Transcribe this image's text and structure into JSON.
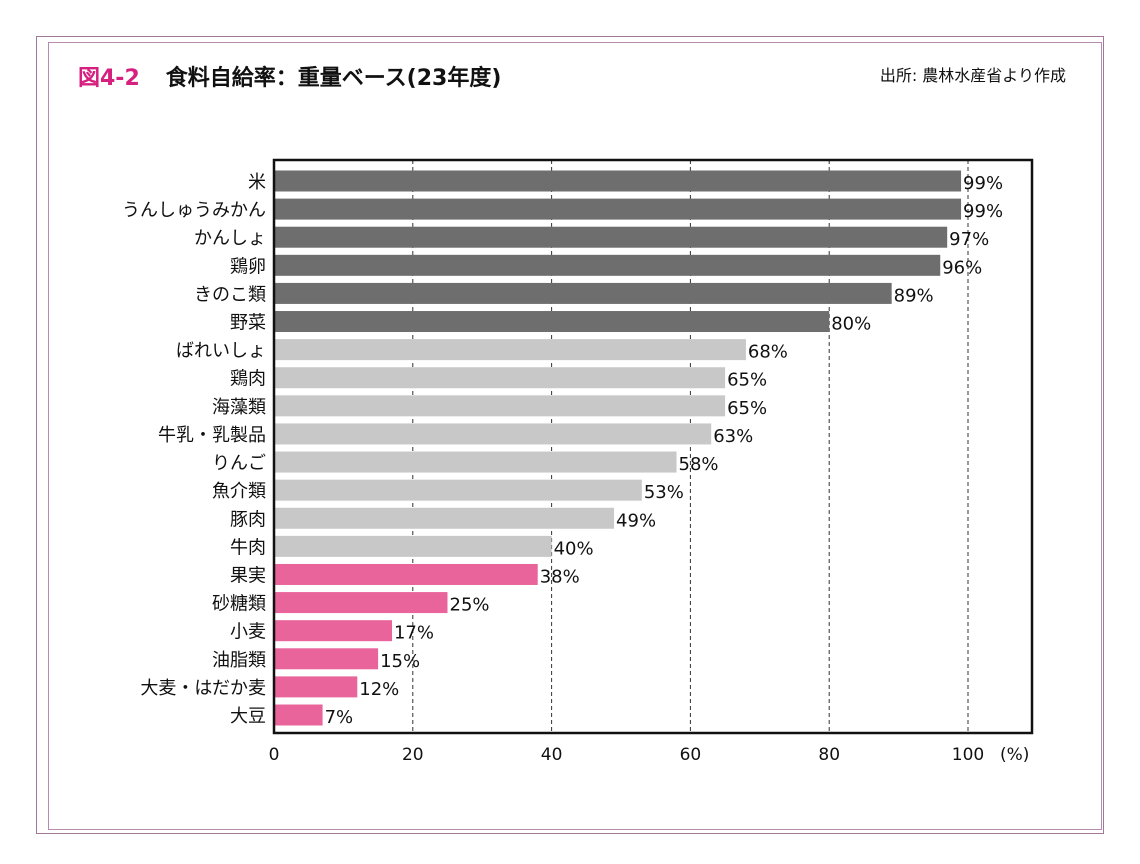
{
  "header": {
    "figure_number": "図4-2",
    "title": "食料自給率：重量ベース(23年度)",
    "source": "出所: 農林水産省より作成"
  },
  "chart_data": {
    "type": "bar",
    "orientation": "horizontal",
    "title": "食料自給率：重量ベース(23年度)",
    "categories": [
      "米",
      "うんしゅうみかん",
      "かんしょ",
      "鶏卵",
      "きのこ類",
      "野菜",
      "ばれいしょ",
      "鶏肉",
      "海藻類",
      "牛乳・乳製品",
      "りんご",
      "魚介類",
      "豚肉",
      "牛肉",
      "果実",
      "砂糖類",
      "小麦",
      "油脂類",
      "大麦・はだか麦",
      "大豆"
    ],
    "values": [
      99,
      99,
      97,
      96,
      89,
      80,
      68,
      65,
      65,
      63,
      58,
      53,
      49,
      40,
      38,
      25,
      17,
      15,
      12,
      7
    ],
    "data_labels": [
      "99%",
      "99%",
      "97%",
      "96%",
      "89%",
      "80%",
      "68%",
      "65%",
      "65%",
      "63%",
      "58%",
      "53%",
      "49%",
      "40%",
      "38%",
      "25%",
      "17%",
      "15%",
      "12%",
      "7%"
    ],
    "bar_color_groups": [
      "dark",
      "dark",
      "dark",
      "dark",
      "dark",
      "dark",
      "light",
      "light",
      "light",
      "light",
      "light",
      "light",
      "light",
      "light",
      "pink",
      "pink",
      "pink",
      "pink",
      "pink",
      "pink"
    ],
    "colors": {
      "dark": "#6e6e6e",
      "light": "#c8c8c8",
      "pink": "#e8649a",
      "title_accent": "#d6207f",
      "frame": "#a0789a"
    },
    "xlim": [
      0,
      109
    ],
    "xticks": [
      0,
      20,
      40,
      60,
      80,
      100
    ],
    "xtick_labels": [
      "0",
      "20",
      "40",
      "60",
      "80",
      "100"
    ],
    "xunit": "(%)",
    "grid": "vertical dashed",
    "legend": "none"
  }
}
